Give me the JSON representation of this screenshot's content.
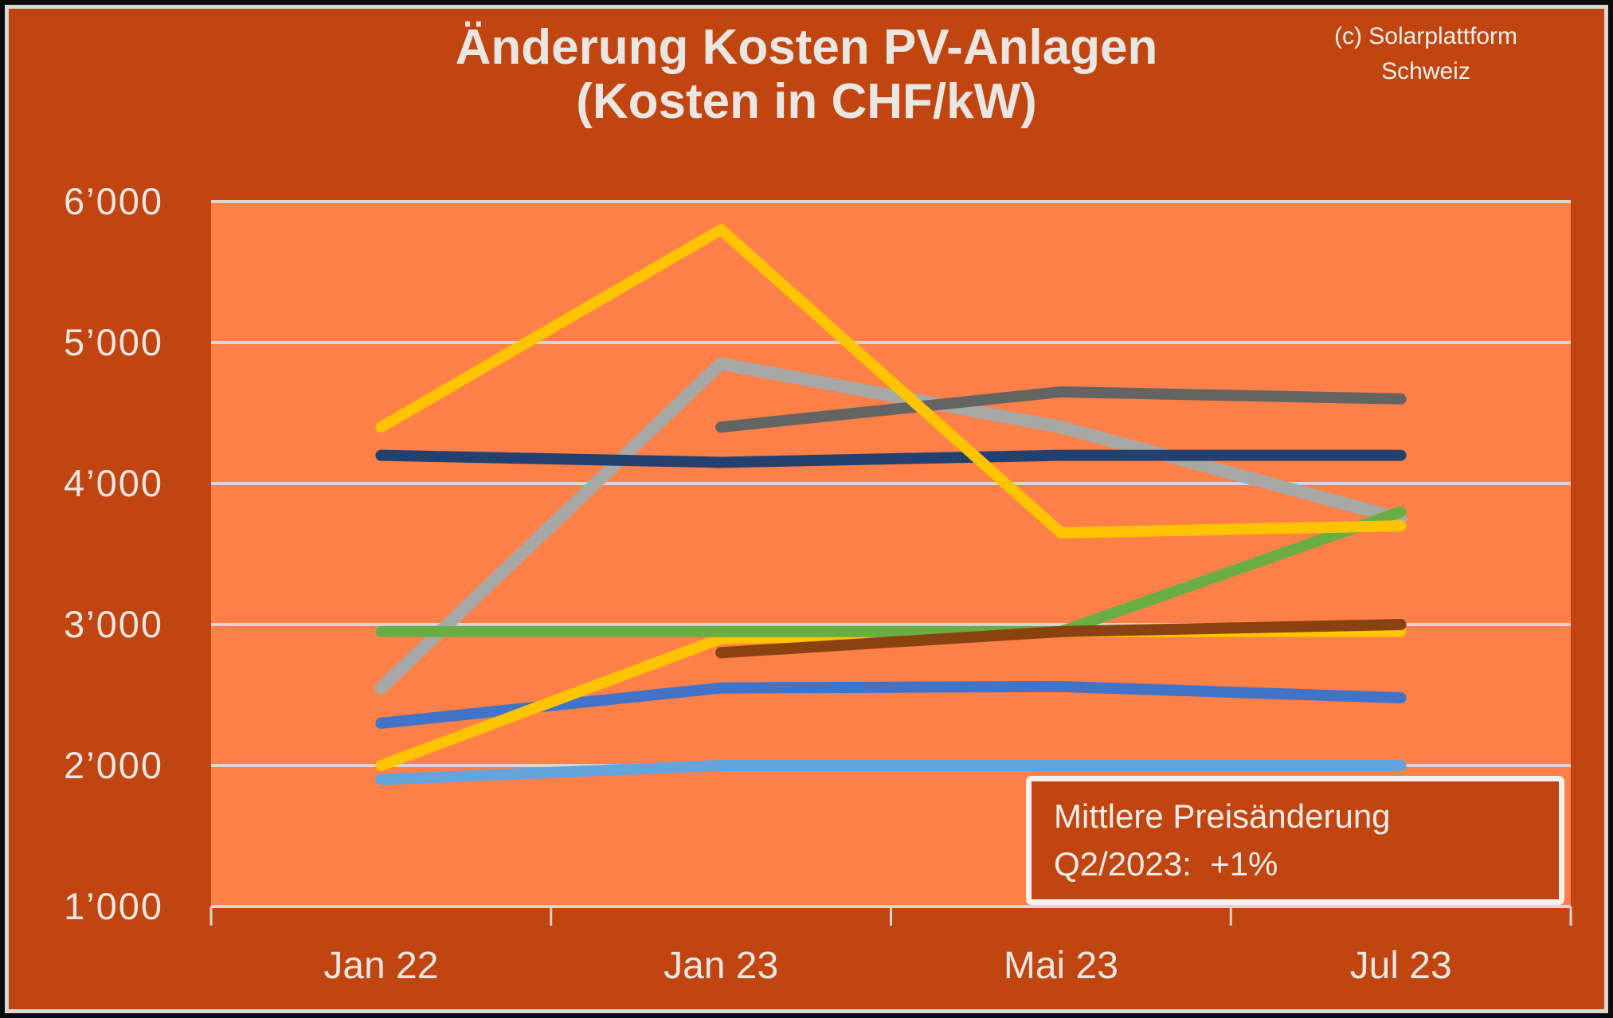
{
  "header": {
    "title_line1": "Änderung Kosten PV-Anlagen",
    "title_line2": "(Kosten in CHF/kW)",
    "copyright_line1": "(c) Solarplattform",
    "copyright_line2": "Schweiz"
  },
  "annotation": {
    "line1": "Mittlere Preisänderung",
    "line2": "Q2/2023:  +1%"
  },
  "colors": {
    "background": "#C14511",
    "plot_background": "#FC8047",
    "gridline": "#D9D7D3",
    "text_light": "#EAE7E3",
    "border_outer": "#0B0B0B"
  },
  "chart_data": {
    "type": "line",
    "title": "Änderung Kosten PV-Anlagen (Kosten in CHF/kW)",
    "unit": "CHF/kW",
    "categories": [
      "Jan 22",
      "Jan 23",
      "Mai 23",
      "Jul 23"
    ],
    "y_axis": {
      "min": 1000,
      "max": 6000,
      "tick_step": 1000,
      "tick_labels": [
        "1’000",
        "2’000",
        "3’000",
        "4’000",
        "5’000",
        "6’000"
      ]
    },
    "grid": true,
    "legend": "none",
    "series": [
      {
        "id": "silver",
        "color": "#A8A8A6",
        "width": 16,
        "values": [
          2550,
          4850,
          4400,
          3750
        ]
      },
      {
        "id": "dark-gray",
        "color": "#646462",
        "width": 14,
        "values": [
          null,
          4400,
          4650,
          4600
        ]
      },
      {
        "id": "navy",
        "color": "#24406E",
        "width": 14,
        "values": [
          4200,
          4150,
          4200,
          4200
        ]
      },
      {
        "id": "light-blue",
        "color": "#63A4DC",
        "width": 14,
        "values": [
          1900,
          2000,
          2000,
          2000
        ]
      },
      {
        "id": "blue",
        "color": "#4173C8",
        "width": 14,
        "values": [
          2300,
          2550,
          2560,
          2480
        ]
      },
      {
        "id": "gold-2",
        "color": "#FFC400",
        "width": 14,
        "values": [
          2000,
          2900,
          2950,
          2950
        ]
      },
      {
        "id": "green",
        "color": "#6BAD45",
        "width": 14,
        "values": [
          2950,
          2950,
          2950,
          3800
        ]
      },
      {
        "id": "brown",
        "color": "#8A4210",
        "width": 14,
        "values": [
          null,
          2800,
          2950,
          3000
        ]
      },
      {
        "id": "gold",
        "color": "#FFC400",
        "width": 14,
        "values": [
          4400,
          5800,
          3650,
          3700
        ]
      }
    ]
  }
}
